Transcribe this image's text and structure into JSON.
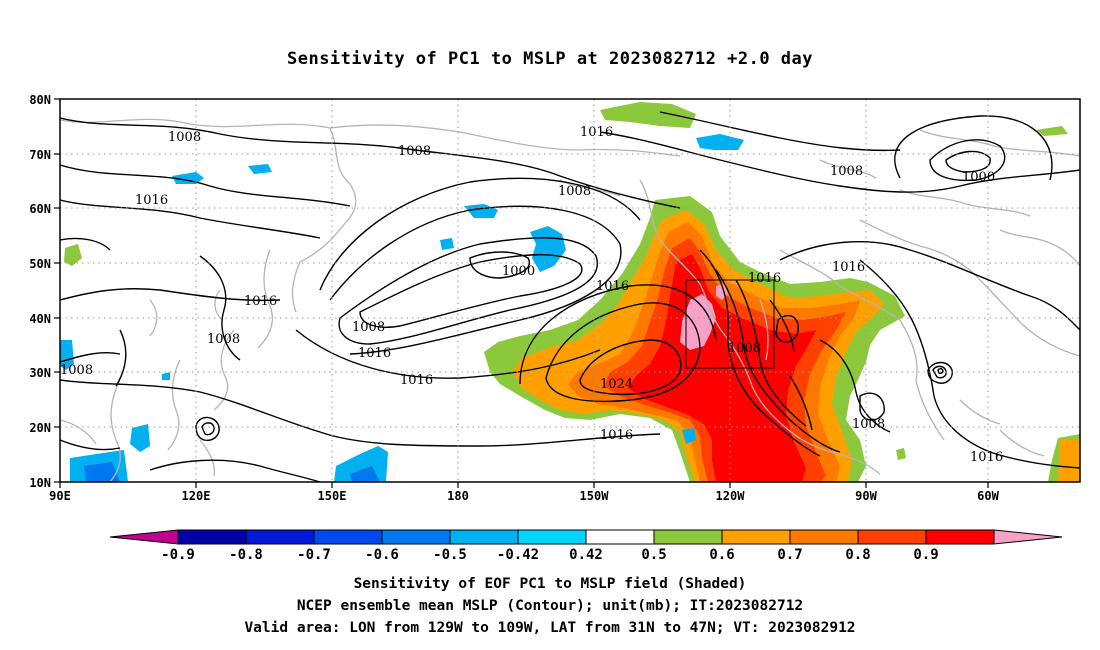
{
  "title": "Sensitivity of PC1 to MSLP at 2023082712 +2.0 day",
  "latitude_labels": [
    "80N",
    "70N",
    "60N",
    "50N",
    "40N",
    "30N",
    "20N",
    "10N"
  ],
  "longitude_labels": [
    "90E",
    "120E",
    "150E",
    "180",
    "150W",
    "120W",
    "90W",
    "60W"
  ],
  "contour_labels": [
    {
      "value": "1008"
    },
    {
      "value": "1008"
    },
    {
      "value": "1016"
    },
    {
      "value": "1008"
    },
    {
      "value": "1008"
    },
    {
      "value": "1000"
    },
    {
      "value": "1016"
    },
    {
      "value": "1016"
    },
    {
      "value": "1016"
    },
    {
      "value": "1008"
    },
    {
      "value": "1008"
    },
    {
      "value": "1016"
    },
    {
      "value": "1016"
    },
    {
      "value": "1000"
    },
    {
      "value": "1016"
    },
    {
      "value": "1016"
    },
    {
      "value": "1008"
    },
    {
      "value": "1024"
    },
    {
      "value": "1016"
    },
    {
      "value": "1008"
    },
    {
      "value": "1016"
    },
    {
      "value": "1008"
    }
  ],
  "colorbar": {
    "ticks": [
      "-0.9",
      "-0.8",
      "-0.7",
      "-0.6",
      "-0.5",
      "-0.42",
      "0.42",
      "0.5",
      "0.6",
      "0.7",
      "0.8",
      "0.9"
    ],
    "colors": [
      "#c00090",
      "#0000a8",
      "#0018d8",
      "#0048f0",
      "#0078f0",
      "#00b0f0",
      "#00d4ff",
      "#ffffff",
      "#8cc83c",
      "#ffa000",
      "#ff7800",
      "#ff4000",
      "#ff0000",
      "#f8a0c8"
    ]
  },
  "captions": [
    "Sensitivity of EOF PC1 to MSLP field (Shaded)",
    "NCEP ensemble mean MSLP (Contour); unit(mb); IT:2023082712",
    "Valid area: LON from 129W to 109W, LAT from 31N to 47N; VT: 2023082912"
  ],
  "valid_area": {
    "lon_min": -129,
    "lon_max": -109,
    "lat_min": 31,
    "lat_max": 47
  }
}
